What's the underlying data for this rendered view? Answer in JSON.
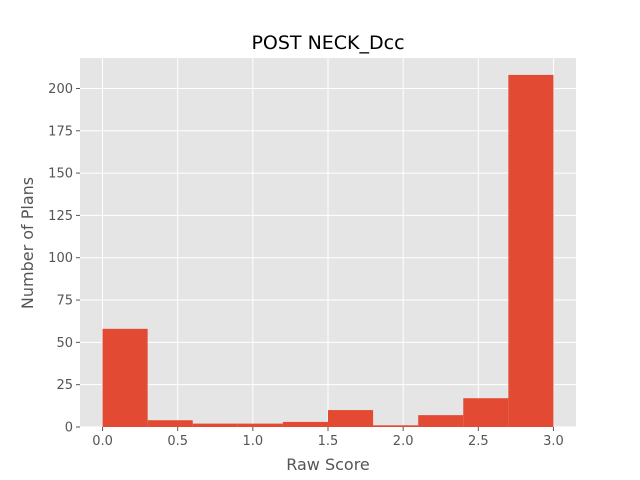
{
  "chart_data": {
    "type": "bar",
    "title": "POST NECK_Dcc",
    "xlabel": "Raw Score",
    "ylabel": "Number of Plans",
    "xlim": [
      -0.15,
      3.15
    ],
    "ylim": [
      0,
      218
    ],
    "xticks": [
      0.0,
      0.5,
      1.0,
      1.5,
      2.0,
      2.5,
      3.0
    ],
    "xtick_labels": [
      "0.0",
      "0.5",
      "1.0",
      "1.5",
      "2.0",
      "2.5",
      "3.0"
    ],
    "yticks": [
      0,
      25,
      50,
      75,
      100,
      125,
      150,
      175,
      200
    ],
    "ytick_labels": [
      "0",
      "25",
      "50",
      "75",
      "100",
      "125",
      "150",
      "175",
      "200"
    ],
    "grid": true,
    "bin_edges": [
      0.0,
      0.3,
      0.6,
      0.9,
      1.2,
      1.5,
      1.8,
      2.1,
      2.4,
      2.7,
      3.0
    ],
    "values": [
      58,
      4,
      2,
      2,
      3,
      10,
      1,
      7,
      17,
      208
    ],
    "colors": {
      "bar": "#E24A33",
      "background": "#E5E5E5",
      "grid": "#FFFFFF"
    }
  }
}
